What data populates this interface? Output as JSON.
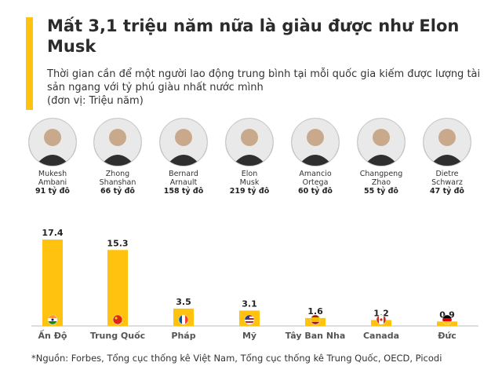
{
  "title": "Mất 3,1 triệu năm nữa là giàu được như Elon Musk",
  "subtitle": "Thời gian cần để một người lao động trung bình tại mỗi quốc gia kiếm được lượng tài sản ngang với tỷ phú giàu nhất nước mình",
  "unit": "(đơn vị: Triệu năm)",
  "colors": {
    "accent": "#FFC20E",
    "bar": "#FFC20E",
    "baseline": "#bbbbbb",
    "axis_text": "#555555"
  },
  "people": [
    {
      "name_line1": "Mukesh",
      "name_line2": "Ambani",
      "wealth": "91 tỷ đô",
      "icon": "portrait-icon"
    },
    {
      "name_line1": "Zhong",
      "name_line2": "Shanshan",
      "wealth": "66 tỷ đô",
      "icon": "portrait-icon"
    },
    {
      "name_line1": "Bernard",
      "name_line2": "Arnault",
      "wealth": "158 tỷ đô",
      "icon": "portrait-icon"
    },
    {
      "name_line1": "Elon",
      "name_line2": "Musk",
      "wealth": "219 tỷ đô",
      "icon": "portrait-icon"
    },
    {
      "name_line1": "Amancio",
      "name_line2": "Ortega",
      "wealth": "60 tỷ đô",
      "icon": "portrait-icon"
    },
    {
      "name_line1": "Changpeng",
      "name_line2": "Zhao",
      "wealth": "55 tỷ đô",
      "icon": "portrait-icon"
    },
    {
      "name_line1": "Dietre",
      "name_line2": "Schwarz",
      "wealth": "47 tỷ đô",
      "icon": "portrait-icon"
    }
  ],
  "chart_data": {
    "type": "bar",
    "categories": [
      "Ấn Độ",
      "Trung Quốc",
      "Pháp",
      "Mỹ",
      "Tây Ban Nha",
      "Canada",
      "Đức"
    ],
    "values": [
      17.4,
      15.3,
      3.5,
      3.1,
      1.6,
      1.2,
      0.9
    ],
    "value_labels": [
      "17.4",
      "15.3",
      "3.5",
      "3.1",
      "1.6",
      "1.2",
      "0.9"
    ],
    "flags": [
      "india-flag-icon",
      "china-flag-icon",
      "france-flag-icon",
      "usa-flag-icon",
      "spain-flag-icon",
      "canada-flag-icon",
      "germany-flag-icon"
    ],
    "ylim": [
      0,
      17.4
    ],
    "grid": false,
    "legend": "none"
  },
  "source": "*Nguồn: Forbes, Tổng cục thống kê Việt Nam, Tổng cục thống kê Trung Quốc, OECD, Picodi"
}
